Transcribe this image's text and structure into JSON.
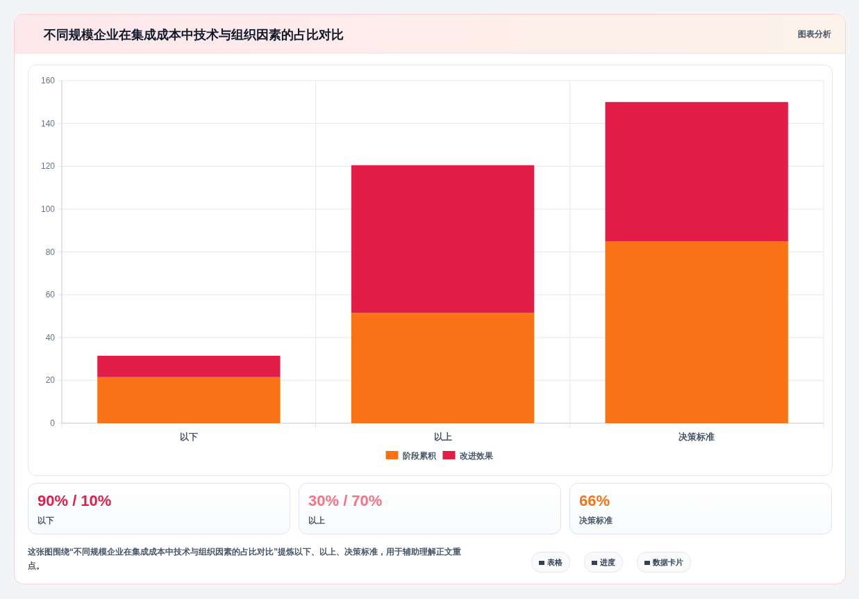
{
  "chart_data": [
    {
      "type": "bar",
      "title": "不同规模企业在集成成本中技术与组织因素的占比对比",
      "stacked": true,
      "categories": [
        "以下",
        "以上",
        "决策标准"
      ],
      "series": [
        {
          "name": "阶段累积",
          "color": "#f97316",
          "values": [
            21.5,
            51.5,
            85
          ]
        },
        {
          "name": "改进效果",
          "color": "#e11d48",
          "values": [
            10,
            69,
            65
          ]
        }
      ],
      "ylim": [
        0,
        160
      ],
      "yticks": [
        0,
        20,
        40,
        60,
        80,
        100,
        120,
        140,
        160
      ],
      "grid": true,
      "legend": "bottom",
      "annotations": [
        "图表分析",
        "这张图围绕“不同规模企业在集成成本中技术与组织因素的占比对比”提炼以下、以上、决策标准，用于辅助理解正文重点。",
        "表格",
        "进度",
        "数据卡片"
      ]
    },
    {
      "type": "other",
      "annotations": [
        "90% / 10%",
        "以下",
        "30% / 70%",
        "以上",
        "66%",
        "决策标准"
      ]
    }
  ]
}
